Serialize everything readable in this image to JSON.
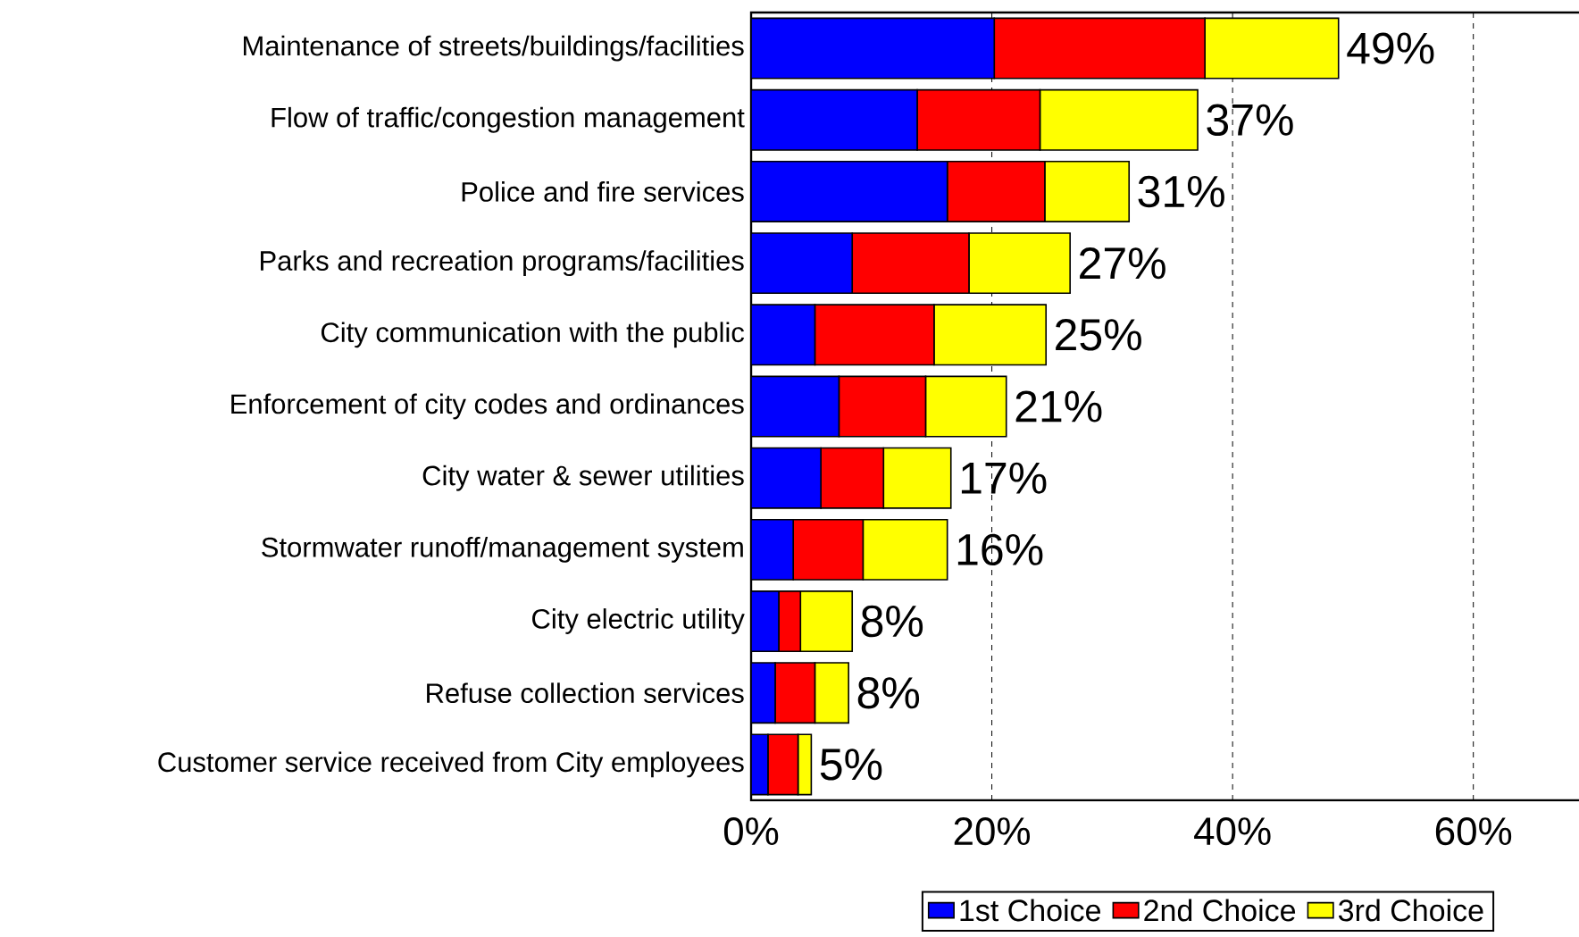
{
  "chart_data": {
    "type": "bar",
    "orientation": "horizontal",
    "stacked": true,
    "categories": [
      "Maintenance of streets/buildings/facilities",
      "Flow of traffic/congestion management",
      "Police and fire services",
      "Parks and recreation programs/facilities",
      "City communication with the public",
      "Enforcement of city codes and ordinances",
      "City water & sewer utilities",
      "Stormwater runoff/management system",
      "City electric utility",
      "Refuse collection services",
      "Customer service received from City employees"
    ],
    "series": [
      {
        "name": "1st Choice",
        "color": "#0000ff",
        "values": [
          20.2,
          13.8,
          16.3,
          8.4,
          5.3,
          7.3,
          5.8,
          3.5,
          2.3,
          2.0,
          1.4
        ]
      },
      {
        "name": "2nd Choice",
        "color": "#ff0000",
        "values": [
          17.5,
          10.2,
          8.1,
          9.7,
          9.9,
          7.2,
          5.2,
          5.8,
          1.8,
          3.3,
          2.5
        ]
      },
      {
        "name": "3rd Choice",
        "color": "#ffff00",
        "values": [
          11.1,
          13.1,
          7.0,
          8.4,
          9.3,
          6.7,
          5.6,
          7.0,
          4.3,
          2.8,
          1.1
        ]
      }
    ],
    "totals": [
      "49%",
      "37%",
      "31%",
      "27%",
      "25%",
      "21%",
      "17%",
      "16%",
      "8%",
      "8%",
      "5%"
    ],
    "xlim": [
      0,
      69
    ],
    "xticks": [
      {
        "value": 0,
        "label": "0%"
      },
      {
        "value": 20,
        "label": "20%"
      },
      {
        "value": 40,
        "label": "40%"
      },
      {
        "value": 60,
        "label": "60%"
      }
    ],
    "grid": "x",
    "legend": "bottom"
  }
}
